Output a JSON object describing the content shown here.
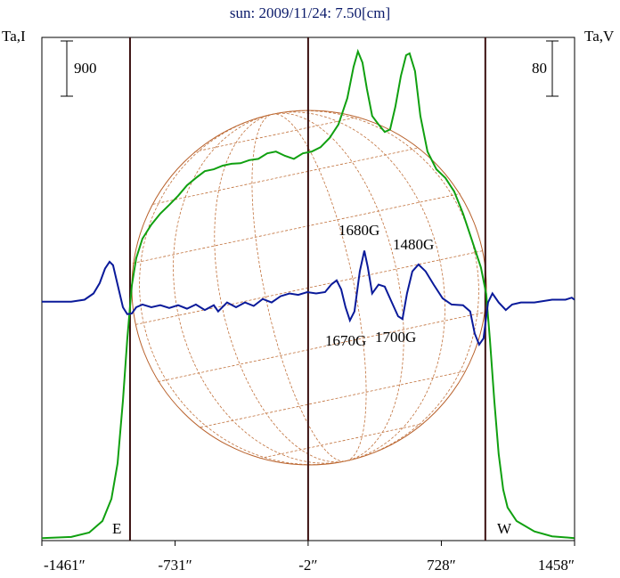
{
  "chart_data": {
    "type": "line",
    "title": "sun: 2009/11/24: 7.50[cm]",
    "y_label": "Ta,I",
    "y2_label": "Ta,V",
    "xlim": [
      -1461,
      1458
    ],
    "xticks": [
      {
        "value": -1461,
        "label": "-1461″"
      },
      {
        "value": -731,
        "label": "-731″"
      },
      {
        "value": -2,
        "label": "-2″"
      },
      {
        "value": 728,
        "label": "728″"
      },
      {
        "value": 1458,
        "label": "1458″"
      }
    ],
    "ylim": [
      0,
      8200
    ],
    "y2lim": [
      -346,
      383
    ],
    "vlines": [
      -978,
      -2,
      969
    ],
    "scale_bars": [
      {
        "axis": "y",
        "value": 900
      },
      {
        "axis": "y2",
        "value": 80
      }
    ],
    "annotations": [
      "E",
      "W",
      "1680G",
      "1480G",
      "1670G",
      "1700G"
    ],
    "series": [
      {
        "name": "Ta,I",
        "color": "#10a010",
        "axis": "y",
        "x": [
          -1461,
          -1300,
          -1202,
          -1129,
          -1080,
          -1046,
          -1017,
          -993,
          -968,
          -944,
          -910,
          -861,
          -812,
          -763,
          -714,
          -666,
          -617,
          -568,
          -519,
          -470,
          -422,
          -373,
          -324,
          -275,
          -226,
          -178,
          -129,
          -80,
          -31,
          18,
          66,
          115,
          164,
          213,
          247,
          271,
          296,
          320,
          349,
          384,
          418,
          447,
          476,
          506,
          535,
          554,
          584,
          613,
          652,
          701,
          750,
          798,
          847,
          896,
          945,
          974,
          994,
          1018,
          1042,
          1067,
          1091,
          1140,
          1238,
          1335,
          1457
        ],
        "values": [
          40,
          60,
          130,
          320,
          680,
          1260,
          2280,
          3290,
          4160,
          4600,
          4920,
          5150,
          5330,
          5470,
          5620,
          5790,
          5910,
          6020,
          6050,
          6110,
          6140,
          6150,
          6200,
          6220,
          6310,
          6340,
          6270,
          6220,
          6310,
          6340,
          6410,
          6560,
          6780,
          7210,
          7720,
          7970,
          7790,
          7360,
          6920,
          6780,
          6660,
          6700,
          7070,
          7570,
          7910,
          7940,
          7650,
          6920,
          6340,
          6050,
          5910,
          5690,
          5330,
          4890,
          4450,
          4020,
          3290,
          2280,
          1410,
          830,
          540,
          320,
          150,
          70,
          40
        ]
      },
      {
        "name": "Ta,V",
        "color": "#0a1a9a",
        "axis": "y2",
        "x": [
          -1461,
          -1300,
          -1227,
          -1178,
          -1144,
          -1115,
          -1090,
          -1071,
          -1046,
          -1017,
          -993,
          -968,
          -944,
          -910,
          -861,
          -812,
          -763,
          -714,
          -666,
          -617,
          -568,
          -519,
          -495,
          -446,
          -397,
          -348,
          -300,
          -251,
          -202,
          -153,
          -104,
          -56,
          -7,
          42,
          91,
          125,
          154,
          179,
          203,
          227,
          252,
          281,
          306,
          325,
          349,
          384,
          418,
          457,
          491,
          515,
          540,
          569,
          603,
          642,
          686,
          735,
          784,
          847,
          886,
          911,
          935,
          959,
          984,
          1008,
          1042,
          1081,
          1116,
          1164,
          1238,
          1335,
          1408,
          1443,
          1457
        ],
        "values": [
          0,
          0,
          3,
          12,
          27,
          48,
          58,
          53,
          25,
          -8,
          -18,
          -17,
          -8,
          -4,
          -8,
          -5,
          -9,
          -5,
          -10,
          -4,
          -12,
          -5,
          -14,
          -1,
          -8,
          -1,
          -6,
          4,
          -1,
          8,
          12,
          10,
          14,
          12,
          14,
          25,
          31,
          18,
          -8,
          -27,
          -14,
          44,
          74,
          50,
          12,
          25,
          22,
          -1,
          -21,
          -25,
          12,
          44,
          54,
          44,
          25,
          5,
          -4,
          -5,
          -14,
          -46,
          -62,
          -53,
          -1,
          12,
          -1,
          -12,
          -4,
          -1,
          -1,
          3,
          3,
          6,
          3
        ]
      }
    ]
  }
}
